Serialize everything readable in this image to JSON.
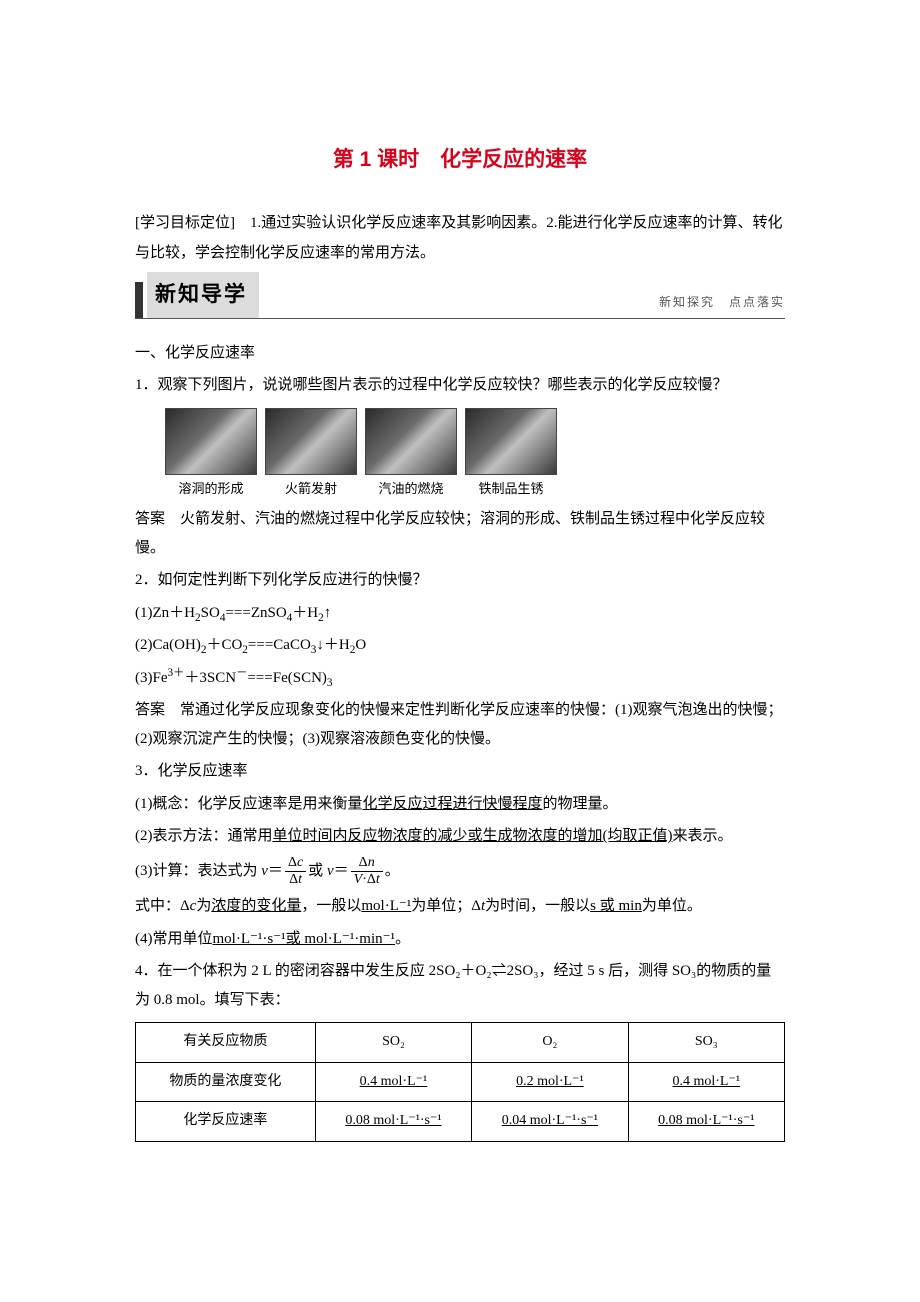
{
  "title": "第 1 课时　化学反应的速率",
  "objective": "[学习目标定位]　1.通过实验认识化学反应速率及其影响因素。2.能进行化学反应速率的计算、转化与比较，学会控制化学反应速率的常用方法。",
  "section_header": {
    "label": "新知导学",
    "sub": "新知探究　点点落实"
  },
  "h1": "一、化学反应速率",
  "q1": "1．观察下列图片，说说哪些图片表示的过程中化学反应较快？哪些表示的化学反应较慢？",
  "thumbs": [
    {
      "cap": "溶洞的形成"
    },
    {
      "cap": "火箭发射"
    },
    {
      "cap": "汽油的燃烧"
    },
    {
      "cap": "铁制品生锈"
    }
  ],
  "a1": "答案　火箭发射、汽油的燃烧过程中化学反应较快；溶洞的形成、铁制品生锈过程中化学反应较慢。",
  "q2": "2．如何定性判断下列化学反应进行的快慢？",
  "eqs": {
    "e1_pre": "(1)Zn＋H",
    "e1_sub1": "2",
    "e1_mid1": "SO",
    "e1_sub2": "4",
    "e1_eq": "===",
    "e1_aft1": "ZnSO",
    "e1_sub3": "4",
    "e1_plus": "＋H",
    "e1_sub4": "2",
    "e1_arrow": "↑",
    "e2_pre": "(2)Ca(OH)",
    "e2_sub1": "2",
    "e2_plus1": "＋CO",
    "e2_sub2": "2",
    "e2_eq": "===",
    "e2_aft1": "CaCO",
    "e2_sub3": "3",
    "e2_arrow": "↓",
    "e2_plus2": "＋H",
    "e2_sub4": "2",
    "e2_o": "O",
    "e3_pre": "(3)Fe",
    "e3_sup1": "3＋",
    "e3_plus": "＋3SCN",
    "e3_sup2": "－",
    "e3_eq": "===",
    "e3_aft": "Fe(SCN)",
    "e3_sub": "3"
  },
  "a2": "答案　常通过化学反应现象变化的快慢来定性判断化学反应速率的快慢：(1)观察气泡逸出的快慢；(2)观察沉淀产生的快慢；(3)观察溶液颜色变化的快慢。",
  "q3": "3．化学反应速率",
  "p3_1_a": "(1)概念：化学反应速率是用来衡量",
  "p3_1_u": "化学反应过程进行快慢程度",
  "p3_1_b": "的物理量。",
  "p3_2_a": "(2)表示方法：通常用",
  "p3_2_u": "单位时间内反应物浓度的减少或生成物浓度的增加(均取正值)",
  "p3_2_b": "来表示。",
  "p3_3": "(3)计算：表达式为",
  "frac1": {
    "num": "Δc",
    "den": "Δt"
  },
  "p3_3_mid": "或",
  "frac2": {
    "num": "Δn",
    "den": "V·Δt"
  },
  "p3_4_a": "式中：Δ",
  "p3_4_c": "c",
  "p3_4_b": "为",
  "p3_4_u1": "浓度的变化量",
  "p3_4_c2": "，一般以",
  "p3_4_u2": "mol·L⁻¹",
  "p3_4_d": "为单位；Δ",
  "p3_4_t": "t",
  "p3_4_e": "为时间，一般以",
  "p3_4_u3": "s 或 min",
  "p3_4_f": "为单位。",
  "p3_5_a": "(4)常用单位",
  "p3_5_u": "mol·L⁻¹·s⁻¹或 mol·L⁻¹·min⁻¹",
  "p3_5_b": "。",
  "q4": "4．在一个体积为 2 L 的密闭容器中发生反应 2SO₂＋O₂⇌2SO₃，经过 5 s 后，测得 SO₃的物质的量为 0.8 mol。填写下表：",
  "table": {
    "head": [
      "有关反应物质",
      "SO₂",
      "O₂",
      "SO₃"
    ],
    "row1_label": "物质的量浓度变化",
    "row1": [
      "0.4 mol·L⁻¹",
      "0.2 mol·L⁻¹",
      "0.4 mol·L⁻¹"
    ],
    "row2_label": "化学反应速率",
    "row2": [
      "0.08 mol·L⁻¹·s⁻¹",
      "0.04 mol·L⁻¹·s⁻¹",
      "0.08 mol·L⁻¹·s⁻¹"
    ]
  }
}
